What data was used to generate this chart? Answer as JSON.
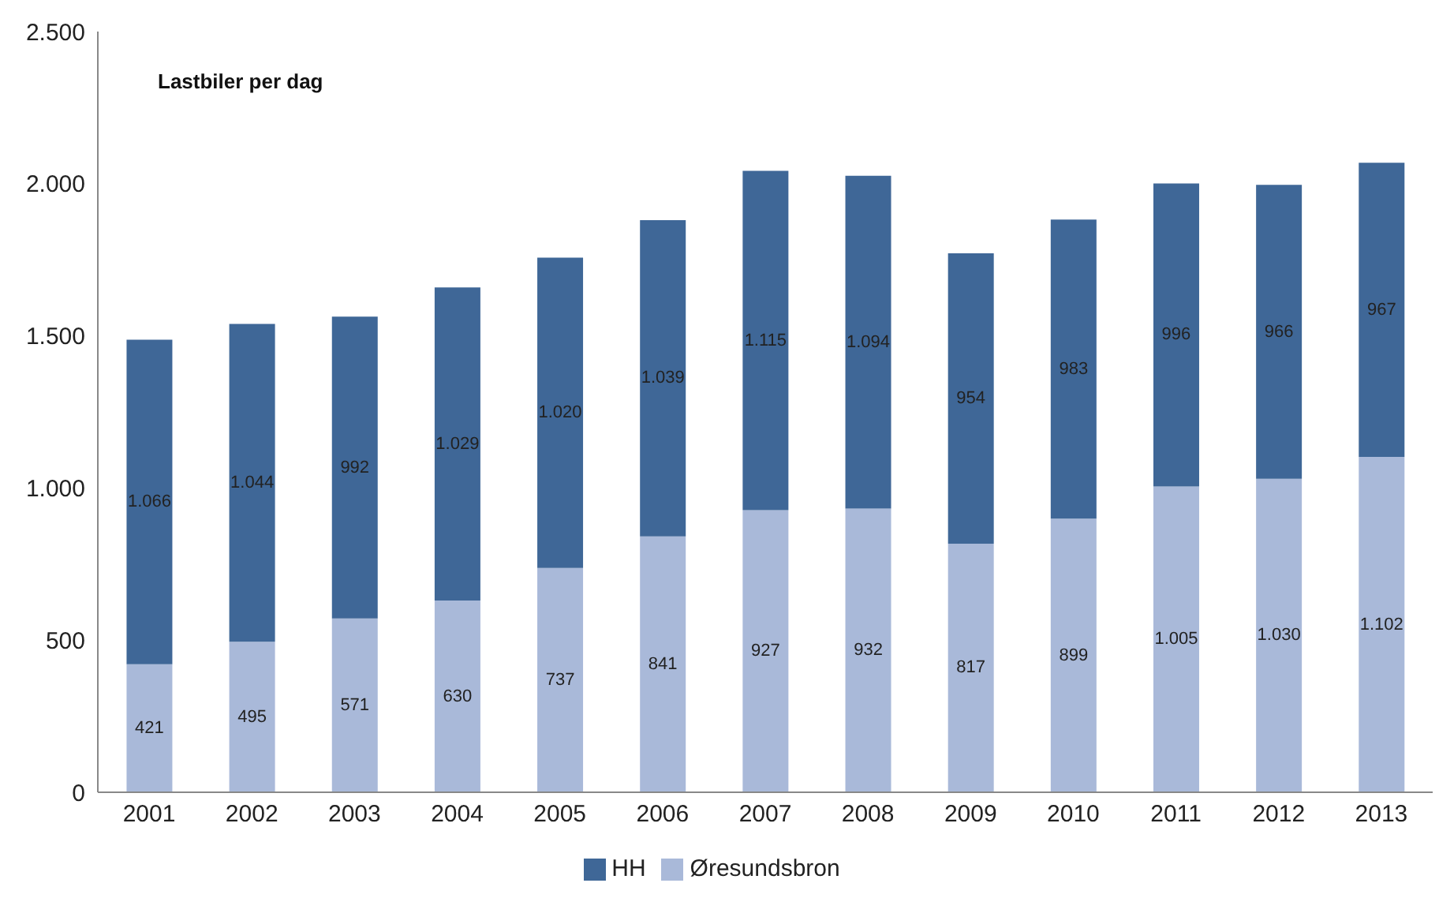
{
  "chart_data": {
    "type": "bar",
    "title": "Lastbiler per dag",
    "stacked": true,
    "categories": [
      "2001",
      "2002",
      "2003",
      "2004",
      "2005",
      "2006",
      "2007",
      "2008",
      "2009",
      "2010",
      "2011",
      "2012",
      "2013"
    ],
    "series": [
      {
        "name": "Øresundsbron",
        "color": "#a9b9d9",
        "values": [
          421,
          495,
          571,
          630,
          737,
          841,
          927,
          932,
          817,
          899,
          1005,
          1030,
          1102
        ],
        "value_labels": [
          "421",
          "495",
          "571",
          "630",
          "737",
          "841",
          "927",
          "932",
          "817",
          "899",
          "1.005",
          "1.030",
          "1.102"
        ]
      },
      {
        "name": "HH",
        "color": "#3f6797",
        "values": [
          1066,
          1044,
          992,
          1029,
          1020,
          1039,
          1115,
          1094,
          954,
          983,
          996,
          966,
          967
        ],
        "value_labels": [
          "1.066",
          "1.044",
          "992",
          "1.029",
          "1.020",
          "1.039",
          "1.115",
          "1.094",
          "954",
          "983",
          "996",
          "966",
          "967"
        ]
      }
    ],
    "ylim": [
      0,
      2500
    ],
    "yticks": [
      {
        "value": 0,
        "label": "0"
      },
      {
        "value": 500,
        "label": "500"
      },
      {
        "value": 1000,
        "label": "1.000"
      },
      {
        "value": 1500,
        "label": "1.500"
      },
      {
        "value": 2000,
        "label": "2.000"
      },
      {
        "value": 2500,
        "label": "2.500"
      }
    ],
    "grid": false,
    "legend": "bottom"
  }
}
